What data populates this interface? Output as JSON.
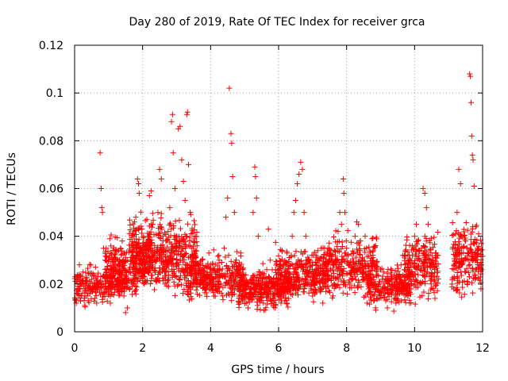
{
  "chart_data": {
    "type": "scatter",
    "title": "Day 280 of 2019, Rate Of TEC Index for receiver grca",
    "xlabel": "GPS time / hours",
    "ylabel": "ROTI / TECUs",
    "xlim": [
      0,
      12
    ],
    "ylim": [
      0,
      0.12
    ],
    "xticks": [
      "0",
      "2",
      "4",
      "6",
      "8",
      "10",
      "12"
    ],
    "yticks": [
      "0",
      "0.02",
      "0.04",
      "0.06",
      "0.08",
      "0.1",
      "0.12"
    ],
    "grid": true,
    "marker": "plus",
    "color": "#ff0000",
    "series": [
      {
        "points": [
          [
            0.05,
            0.012
          ],
          [
            0.1,
            0.018
          ],
          [
            0.15,
            0.022
          ],
          [
            0.2,
            0.015
          ],
          [
            0.25,
            0.025
          ],
          [
            0.3,
            0.011
          ],
          [
            0.35,
            0.02
          ],
          [
            0.4,
            0.013
          ],
          [
            0.45,
            0.016
          ],
          [
            0.5,
            0.022
          ],
          [
            0.55,
            0.018
          ],
          [
            0.6,
            0.014
          ],
          [
            0.65,
            0.012
          ],
          [
            0.7,
            0.02
          ],
          [
            0.75,
            0.075
          ],
          [
            0.78,
            0.06
          ],
          [
            0.8,
            0.052
          ],
          [
            0.82,
            0.05
          ],
          [
            0.85,
            0.035
          ],
          [
            0.9,
            0.03
          ],
          [
            0.95,
            0.024
          ],
          [
            1.0,
            0.016
          ],
          [
            1.05,
            0.012
          ],
          [
            1.1,
            0.02
          ],
          [
            1.15,
            0.027
          ],
          [
            1.2,
            0.03
          ],
          [
            1.25,
            0.022
          ],
          [
            1.3,
            0.018
          ],
          [
            1.35,
            0.035
          ],
          [
            1.4,
            0.038
          ],
          [
            1.45,
            0.015
          ],
          [
            1.5,
            0.008
          ],
          [
            1.55,
            0.01
          ],
          [
            1.6,
            0.025
          ],
          [
            1.65,
            0.03
          ],
          [
            1.7,
            0.02
          ],
          [
            1.75,
            0.042
          ],
          [
            1.8,
            0.048
          ],
          [
            1.85,
            0.064
          ],
          [
            1.88,
            0.062
          ],
          [
            1.9,
            0.058
          ],
          [
            1.95,
            0.035
          ],
          [
            2.0,
            0.028
          ],
          [
            2.05,
            0.02
          ],
          [
            2.1,
            0.032
          ],
          [
            2.15,
            0.04
          ],
          [
            2.2,
            0.057
          ],
          [
            2.25,
            0.059
          ],
          [
            2.3,
            0.045
          ],
          [
            2.35,
            0.03
          ],
          [
            2.4,
            0.022
          ],
          [
            2.45,
            0.05
          ],
          [
            2.5,
            0.068
          ],
          [
            2.55,
            0.064
          ],
          [
            2.6,
            0.038
          ],
          [
            2.65,
            0.025
          ],
          [
            2.7,
            0.03
          ],
          [
            2.75,
            0.042
          ],
          [
            2.8,
            0.052
          ],
          [
            2.85,
            0.088
          ],
          [
            2.88,
            0.091
          ],
          [
            2.9,
            0.075
          ],
          [
            2.95,
            0.06
          ],
          [
            3.0,
            0.04
          ],
          [
            3.05,
            0.085
          ],
          [
            3.1,
            0.086
          ],
          [
            3.15,
            0.072
          ],
          [
            3.2,
            0.063
          ],
          [
            3.25,
            0.055
          ],
          [
            3.3,
            0.091
          ],
          [
            3.32,
            0.092
          ],
          [
            3.35,
            0.07
          ],
          [
            3.4,
            0.05
          ],
          [
            3.45,
            0.035
          ],
          [
            3.5,
            0.028
          ],
          [
            3.55,
            0.04
          ],
          [
            3.6,
            0.036
          ],
          [
            3.65,
            0.028
          ],
          [
            3.7,
            0.02
          ],
          [
            3.75,
            0.03
          ],
          [
            3.8,
            0.024
          ],
          [
            3.85,
            0.018
          ],
          [
            3.9,
            0.025
          ],
          [
            3.95,
            0.033
          ],
          [
            4.0,
            0.028
          ],
          [
            4.05,
            0.022
          ],
          [
            4.1,
            0.015
          ],
          [
            4.15,
            0.018
          ],
          [
            4.2,
            0.024
          ],
          [
            4.25,
            0.03
          ],
          [
            4.3,
            0.02
          ],
          [
            4.35,
            0.015
          ],
          [
            4.4,
            0.035
          ],
          [
            4.45,
            0.048
          ],
          [
            4.5,
            0.056
          ],
          [
            4.55,
            0.102
          ],
          [
            4.6,
            0.083
          ],
          [
            4.62,
            0.079
          ],
          [
            4.65,
            0.065
          ],
          [
            4.7,
            0.05
          ],
          [
            4.75,
            0.03
          ],
          [
            4.8,
            0.018
          ],
          [
            4.85,
            0.012
          ],
          [
            4.9,
            0.02
          ],
          [
            4.95,
            0.026
          ],
          [
            5.0,
            0.018
          ],
          [
            5.05,
            0.012
          ],
          [
            5.1,
            0.01
          ],
          [
            5.15,
            0.015
          ],
          [
            5.2,
            0.022
          ],
          [
            5.25,
            0.05
          ],
          [
            5.3,
            0.069
          ],
          [
            5.32,
            0.065
          ],
          [
            5.35,
            0.056
          ],
          [
            5.4,
            0.04
          ],
          [
            5.45,
            0.025
          ],
          [
            5.5,
            0.018
          ],
          [
            5.55,
            0.012
          ],
          [
            5.6,
            0.016
          ],
          [
            5.65,
            0.026
          ],
          [
            5.7,
            0.043
          ],
          [
            5.75,
            0.03
          ],
          [
            5.8,
            0.02
          ],
          [
            5.85,
            0.014
          ],
          [
            5.9,
            0.01
          ],
          [
            5.95,
            0.018
          ],
          [
            6.0,
            0.022
          ],
          [
            6.05,
            0.028
          ],
          [
            6.1,
            0.02
          ],
          [
            6.15,
            0.015
          ],
          [
            6.2,
            0.025
          ],
          [
            6.25,
            0.033
          ],
          [
            6.3,
            0.022
          ],
          [
            6.35,
            0.018
          ],
          [
            6.4,
            0.04
          ],
          [
            6.45,
            0.05
          ],
          [
            6.5,
            0.055
          ],
          [
            6.55,
            0.062
          ],
          [
            6.6,
            0.066
          ],
          [
            6.65,
            0.071
          ],
          [
            6.7,
            0.068
          ],
          [
            6.75,
            0.05
          ],
          [
            6.8,
            0.04
          ],
          [
            6.85,
            0.03
          ],
          [
            6.9,
            0.025
          ],
          [
            6.95,
            0.018
          ],
          [
            7.0,
            0.015
          ],
          [
            7.05,
            0.02
          ],
          [
            7.1,
            0.028
          ],
          [
            7.15,
            0.034
          ],
          [
            7.2,
            0.024
          ],
          [
            7.25,
            0.018
          ],
          [
            7.3,
            0.012
          ],
          [
            7.35,
            0.02
          ],
          [
            7.4,
            0.028
          ],
          [
            7.45,
            0.035
          ],
          [
            7.5,
            0.03
          ],
          [
            7.55,
            0.022
          ],
          [
            7.6,
            0.015
          ],
          [
            7.65,
            0.02
          ],
          [
            7.7,
            0.03
          ],
          [
            7.75,
            0.042
          ],
          [
            7.8,
            0.05
          ],
          [
            7.85,
            0.045
          ],
          [
            7.9,
            0.064
          ],
          [
            7.92,
            0.058
          ],
          [
            7.95,
            0.05
          ],
          [
            8.0,
            0.035
          ],
          [
            8.05,
            0.028
          ],
          [
            8.1,
            0.02
          ],
          [
            8.15,
            0.025
          ],
          [
            8.2,
            0.033
          ],
          [
            8.25,
            0.04
          ],
          [
            8.3,
            0.046
          ],
          [
            8.35,
            0.045
          ],
          [
            8.4,
            0.038
          ],
          [
            8.45,
            0.03
          ],
          [
            8.5,
            0.022
          ],
          [
            8.55,
            0.015
          ],
          [
            8.6,
            0.012
          ],
          [
            8.65,
            0.018
          ],
          [
            8.7,
            0.024
          ],
          [
            8.75,
            0.02
          ],
          [
            8.8,
            0.015
          ],
          [
            8.85,
            0.01
          ],
          [
            8.9,
            0.014
          ],
          [
            8.95,
            0.02
          ],
          [
            9.0,
            0.026
          ],
          [
            9.05,
            0.022
          ],
          [
            9.1,
            0.018
          ],
          [
            9.15,
            0.013
          ],
          [
            9.2,
            0.01
          ],
          [
            9.25,
            0.016
          ],
          [
            9.3,
            0.022
          ],
          [
            9.35,
            0.018
          ],
          [
            9.4,
            0.014
          ],
          [
            9.45,
            0.012
          ],
          [
            9.5,
            0.016
          ],
          [
            9.55,
            0.02
          ],
          [
            9.6,
            0.028
          ],
          [
            9.65,
            0.032
          ],
          [
            9.7,
            0.026
          ],
          [
            9.75,
            0.02
          ],
          [
            9.8,
            0.015
          ],
          [
            9.85,
            0.012
          ],
          [
            9.9,
            0.018
          ],
          [
            9.95,
            0.024
          ],
          [
            10.0,
            0.04
          ],
          [
            10.05,
            0.045
          ],
          [
            10.1,
            0.038
          ],
          [
            10.15,
            0.03
          ],
          [
            10.2,
            0.035
          ],
          [
            10.25,
            0.06
          ],
          [
            10.3,
            0.058
          ],
          [
            10.35,
            0.052
          ],
          [
            10.4,
            0.045
          ],
          [
            10.45,
            0.03
          ],
          [
            10.5,
            0.022
          ],
          [
            10.55,
            0.018
          ],
          [
            10.6,
            0.014
          ],
          [
            11.1,
            0.02
          ],
          [
            11.15,
            0.018
          ],
          [
            11.2,
            0.035
          ],
          [
            11.25,
            0.05
          ],
          [
            11.3,
            0.068
          ],
          [
            11.35,
            0.062
          ],
          [
            11.4,
            0.04
          ],
          [
            11.45,
            0.03
          ],
          [
            11.5,
            0.025
          ],
          [
            11.55,
            0.02
          ],
          [
            11.6,
            0.03
          ],
          [
            11.62,
            0.108
          ],
          [
            11.64,
            0.107
          ],
          [
            11.66,
            0.096
          ],
          [
            11.68,
            0.082
          ],
          [
            11.7,
            0.074
          ],
          [
            11.72,
            0.072
          ],
          [
            11.75,
            0.061
          ],
          [
            11.8,
            0.044
          ],
          [
            11.85,
            0.035
          ],
          [
            11.9,
            0.028
          ],
          [
            11.95,
            0.018
          ]
        ]
      }
    ],
    "dense_clusters": [
      {
        "x_start": 0.0,
        "x_end": 1.6,
        "y_low": 0.009,
        "y_high": 0.028,
        "count": 260
      },
      {
        "x_start": 0.9,
        "x_end": 2.3,
        "y_low": 0.012,
        "y_high": 0.04,
        "count": 240
      },
      {
        "x_start": 1.6,
        "x_end": 3.6,
        "y_low": 0.012,
        "y_high": 0.048,
        "count": 500
      },
      {
        "x_start": 3.3,
        "x_end": 5.0,
        "y_low": 0.01,
        "y_high": 0.032,
        "count": 340
      },
      {
        "x_start": 4.8,
        "x_end": 6.3,
        "y_low": 0.007,
        "y_high": 0.026,
        "count": 330
      },
      {
        "x_start": 5.9,
        "x_end": 7.4,
        "y_low": 0.01,
        "y_high": 0.035,
        "count": 330
      },
      {
        "x_start": 7.3,
        "x_end": 8.9,
        "y_low": 0.011,
        "y_high": 0.04,
        "count": 320
      },
      {
        "x_start": 8.6,
        "x_end": 9.9,
        "y_low": 0.008,
        "y_high": 0.028,
        "count": 240
      },
      {
        "x_start": 9.7,
        "x_end": 10.7,
        "y_low": 0.01,
        "y_high": 0.04,
        "count": 210
      },
      {
        "x_start": 11.1,
        "x_end": 12.0,
        "y_low": 0.012,
        "y_high": 0.045,
        "count": 200
      }
    ]
  }
}
